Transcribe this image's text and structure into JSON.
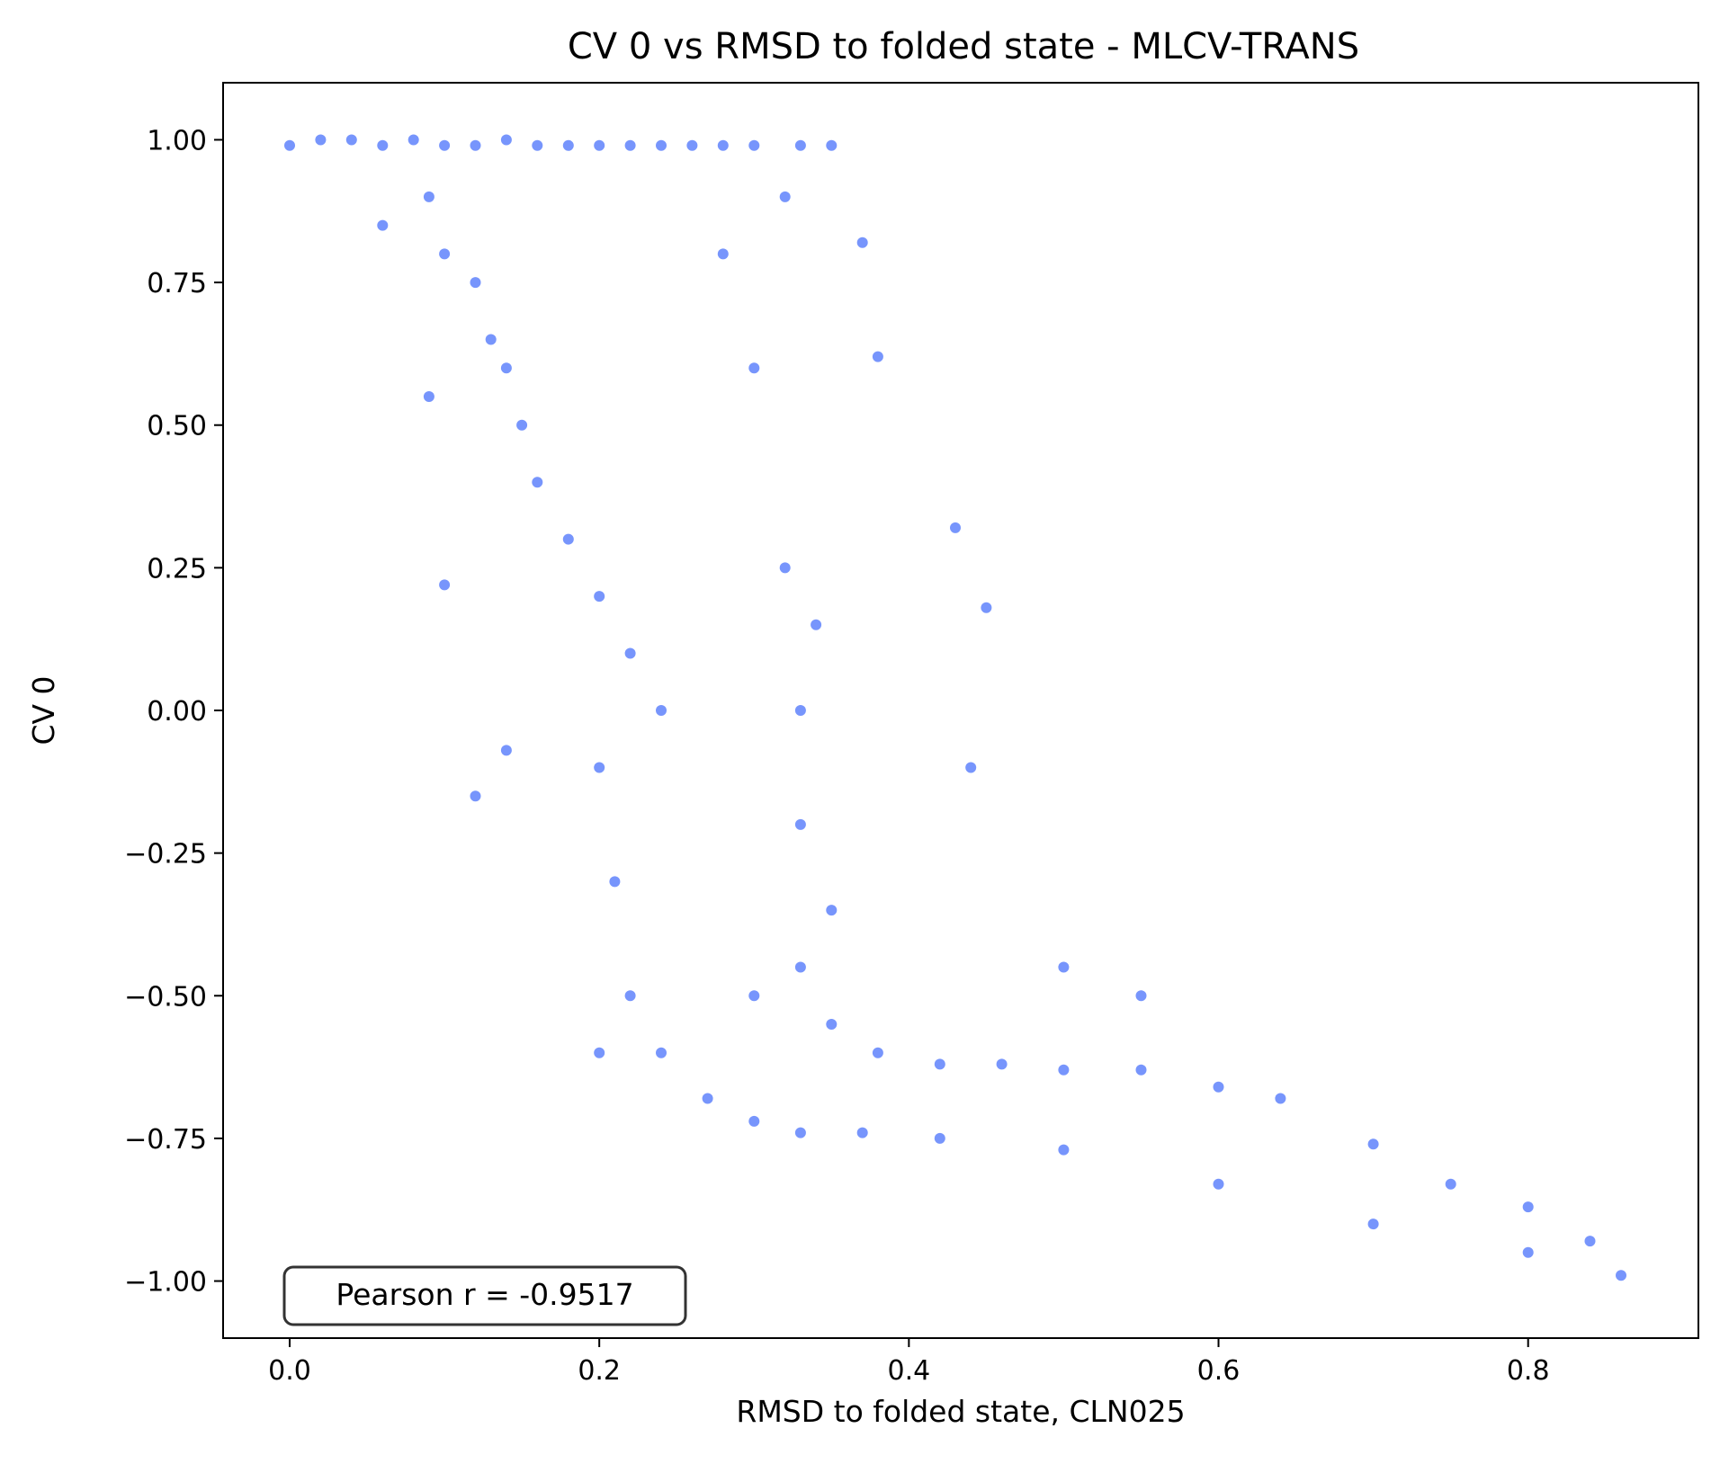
{
  "chart_data": {
    "type": "scatter",
    "title": "CV 0 vs RMSD to folded state - MLCV-TRANS",
    "xlabel": "RMSD to folded state, CLN025",
    "ylabel": "CV 0",
    "xlim": [
      -0.043,
      0.91
    ],
    "ylim": [
      -1.1,
      1.1
    ],
    "x_ticks": [
      0.0,
      0.2,
      0.4,
      0.6,
      0.8
    ],
    "x_tick_labels": [
      "0.0",
      "0.2",
      "0.4",
      "0.6",
      "0.8"
    ],
    "y_ticks": [
      1.0,
      0.75,
      0.5,
      0.25,
      0.0,
      -0.25,
      -0.5,
      -0.75,
      -1.0
    ],
    "y_tick_labels": [
      "1.00",
      "0.75",
      "0.50",
      "0.25",
      "0.00",
      "−0.25",
      "−0.50",
      "−0.75",
      "−1.00"
    ],
    "grid": false,
    "color": "#4a72fb",
    "annotation": "Pearson r = -0.9517",
    "annotation_position": "bottom-left",
    "series": [
      {
        "values_xy": [
          [
            0.0,
            0.99
          ],
          [
            0.02,
            1.0
          ],
          [
            0.04,
            1.0
          ],
          [
            0.06,
            0.99
          ],
          [
            0.08,
            1.0
          ],
          [
            0.1,
            0.99
          ],
          [
            0.12,
            0.99
          ],
          [
            0.14,
            1.0
          ],
          [
            0.16,
            0.99
          ],
          [
            0.18,
            0.99
          ],
          [
            0.2,
            0.99
          ],
          [
            0.22,
            0.99
          ],
          [
            0.24,
            0.99
          ],
          [
            0.26,
            0.99
          ],
          [
            0.28,
            0.99
          ],
          [
            0.3,
            0.99
          ],
          [
            0.33,
            0.99
          ],
          [
            0.35,
            0.99
          ],
          [
            0.06,
            0.85
          ],
          [
            0.09,
            0.9
          ],
          [
            0.1,
            0.8
          ],
          [
            0.12,
            0.75
          ],
          [
            0.13,
            0.65
          ],
          [
            0.14,
            0.6
          ],
          [
            0.15,
            0.5
          ],
          [
            0.16,
            0.4
          ],
          [
            0.18,
            0.3
          ],
          [
            0.2,
            0.2
          ],
          [
            0.22,
            0.1
          ],
          [
            0.24,
            0.0
          ],
          [
            0.2,
            -0.1
          ],
          [
            0.21,
            -0.3
          ],
          [
            0.22,
            -0.5
          ],
          [
            0.24,
            -0.6
          ],
          [
            0.27,
            -0.68
          ],
          [
            0.3,
            -0.72
          ],
          [
            0.33,
            -0.74
          ],
          [
            0.37,
            -0.74
          ],
          [
            0.42,
            -0.75
          ],
          [
            0.5,
            -0.77
          ],
          [
            0.6,
            -0.83
          ],
          [
            0.7,
            -0.9
          ],
          [
            0.8,
            -0.95
          ],
          [
            0.86,
            -0.99
          ],
          [
            0.3,
            -0.5
          ],
          [
            0.33,
            -0.45
          ],
          [
            0.35,
            -0.55
          ],
          [
            0.38,
            -0.6
          ],
          [
            0.42,
            -0.62
          ],
          [
            0.46,
            -0.62
          ],
          [
            0.5,
            -0.63
          ],
          [
            0.55,
            -0.63
          ],
          [
            0.6,
            -0.66
          ],
          [
            0.64,
            -0.68
          ],
          [
            0.7,
            -0.76
          ],
          [
            0.75,
            -0.83
          ],
          [
            0.8,
            -0.87
          ],
          [
            0.84,
            -0.93
          ],
          [
            0.32,
            0.25
          ],
          [
            0.34,
            0.15
          ],
          [
            0.33,
            0.0
          ],
          [
            0.33,
            -0.2
          ],
          [
            0.35,
            -0.35
          ],
          [
            0.28,
            0.8
          ],
          [
            0.3,
            0.6
          ],
          [
            0.32,
            0.9
          ],
          [
            0.37,
            0.82
          ],
          [
            0.38,
            0.62
          ],
          [
            0.45,
            0.18
          ],
          [
            0.43,
            0.32
          ],
          [
            0.44,
            -0.1
          ],
          [
            0.5,
            -0.45
          ],
          [
            0.55,
            -0.5
          ],
          [
            0.09,
            0.55
          ],
          [
            0.1,
            0.22
          ],
          [
            0.14,
            -0.07
          ],
          [
            0.12,
            -0.15
          ],
          [
            0.2,
            -0.6
          ]
        ]
      }
    ]
  }
}
